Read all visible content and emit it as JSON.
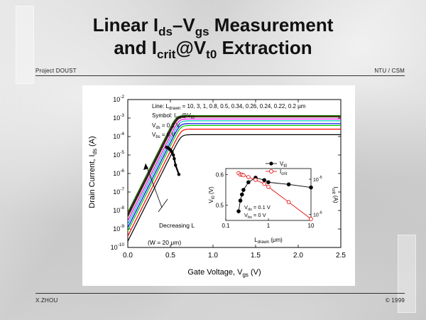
{
  "slide": {
    "title_line1": {
      "a": "Linear I",
      "b": "ds",
      "c": "–V",
      "d": "gs",
      "e": " Measurement"
    },
    "title_line2": {
      "a": "and I",
      "b": "crit",
      "c": "@V",
      "d": "t0",
      "e": " Extraction"
    },
    "header_left": "Project DOUST",
    "header_right": "NTU / CSM",
    "footer_left": "X.ZHOU",
    "footer_right": "© 1999"
  },
  "chart_data": [
    {
      "type": "line",
      "xlabel": {
        "a": "Gate Voltage, V",
        "b": "gs",
        "c": " (V)"
      },
      "ylabel": {
        "a": "Drain Current, I",
        "b": "ds",
        "c": " (A)"
      },
      "xlim": [
        0.0,
        2.5
      ],
      "ylim_log10": [
        -10,
        -2
      ],
      "xticks": [
        "0.0",
        "0.5",
        "1.0",
        "1.5",
        "2.0",
        "2.5"
      ],
      "yticks": [
        {
          "exp": -2,
          "label": "10",
          "sup": "-2"
        },
        {
          "exp": -3,
          "label": "10",
          "sup": "-3"
        },
        {
          "exp": -4,
          "label": "10",
          "sup": "-4"
        },
        {
          "exp": -5,
          "label": "10",
          "sup": "-5"
        },
        {
          "exp": -6,
          "label": "10",
          "sup": "-6"
        },
        {
          "exp": -7,
          "label": "10",
          "sup": "-7"
        },
        {
          "exp": -8,
          "label": "10",
          "sup": "-8"
        },
        {
          "exp": -9,
          "label": "10",
          "sup": "-9"
        },
        {
          "exp": -10,
          "label": "10",
          "sup": "-10"
        }
      ],
      "legend_lines": {
        "l1": {
          "a": "Line: L",
          "b": "drawn",
          "c": " = 10, 3, 1, 0.8, 0.5, 0.34, 0.26, 0.24, 0.22, 0.2 μm"
        },
        "l2": {
          "a": "Symbol: I",
          "b": "crit",
          "c": "@V",
          "d": "t0"
        },
        "l3": {
          "a": "V",
          "b": "ds",
          "c": " = 0.1 V"
        },
        "l4": {
          "a": "V",
          "b": "bs",
          "c": " = 0 V"
        }
      },
      "annotations": {
        "decreasing": "Decreasing L",
        "width": "(W = 20 μm)"
      },
      "series": [
        {
          "L": "10",
          "color": "#000000",
          "vt": 0.52,
          "sat_log": -3.9,
          "crit_x": 0.6,
          "crit_log": -6.05
        },
        {
          "L": "3",
          "color": "#ff0000",
          "vt": 0.49,
          "sat_log": -3.6,
          "crit_x": 0.56,
          "crit_log": -5.55
        },
        {
          "L": "1",
          "color": "#00cc00",
          "vt": 0.46,
          "sat_log": -3.4,
          "crit_x": 0.545,
          "crit_log": -5.2
        },
        {
          "L": "0.8",
          "color": "#0000ff",
          "vt": 0.44,
          "sat_log": -3.3,
          "crit_x": 0.535,
          "crit_log": -5.0
        },
        {
          "L": "0.5",
          "color": "#00c0c0",
          "vt": 0.42,
          "sat_log": -3.15,
          "crit_x": 0.52,
          "crit_log": -4.85
        },
        {
          "L": "0.34",
          "color": "#ff00ff",
          "vt": 0.4,
          "sat_log": -3.05,
          "crit_x": 0.505,
          "crit_log": -4.75
        },
        {
          "L": "0.26",
          "color": "#808000",
          "vt": 0.38,
          "sat_log": -2.95,
          "crit_x": 0.49,
          "crit_log": -4.68
        },
        {
          "L": "0.24",
          "color": "#000080",
          "vt": 0.37,
          "sat_log": -2.92,
          "crit_x": 0.475,
          "crit_log": -4.63
        },
        {
          "L": "0.22",
          "color": "#800000",
          "vt": 0.36,
          "sat_log": -2.9,
          "crit_x": 0.465,
          "crit_log": -4.6
        },
        {
          "L": "0.2",
          "color": "#008000",
          "vt": 0.35,
          "sat_log": -2.87,
          "crit_x": 0.455,
          "crit_log": -4.58
        }
      ]
    },
    {
      "type": "line",
      "title": "",
      "xlabel": {
        "a": "L",
        "b": "drawn",
        "c": " (μm)"
      },
      "ylabel_left": {
        "a": "V",
        "b": "t0",
        "c": " (V)"
      },
      "ylabel_right": {
        "a": "I",
        "b": "crit",
        "c": " (A)"
      },
      "x_log": true,
      "xlim": [
        0.1,
        10
      ],
      "xticks": [
        "0.1",
        "1",
        "10"
      ],
      "ylim_left": [
        0.45,
        0.62
      ],
      "yticks_left": [
        "0.6",
        "0.5"
      ],
      "yticks_right": [
        {
          "label": "10",
          "sup": "-5"
        },
        {
          "label": "10",
          "sup": "-6"
        }
      ],
      "legend": [
        {
          "a": "V",
          "b": "t0"
        },
        {
          "a": "I",
          "b": "crit"
        }
      ],
      "annotations": {
        "vds": {
          "a": "V",
          "b": "ds",
          "c": " = 0.1 V"
        },
        "vbs": {
          "a": "V",
          "b": "bs",
          "c": " = 0 V"
        }
      },
      "series": [
        {
          "name": "Vt0",
          "axis": "left",
          "color": "#000000",
          "marker": "filled-circle",
          "x": [
            0.2,
            0.22,
            0.24,
            0.26,
            0.34,
            0.5,
            0.8,
            1,
            3,
            10
          ],
          "y": [
            0.48,
            0.515,
            0.535,
            0.55,
            0.575,
            0.59,
            0.582,
            0.575,
            0.568,
            0.558
          ]
        },
        {
          "name": "Icrit",
          "axis": "right",
          "color": "#e00000",
          "marker": "open-circle",
          "x": [
            0.2,
            0.22,
            0.24,
            0.26,
            0.34,
            0.5,
            0.8,
            1,
            3,
            10
          ],
          "y": [
            0.605,
            0.6,
            0.6,
            0.598,
            0.592,
            0.583,
            0.57,
            0.56,
            0.51,
            0.455
          ]
        }
      ]
    }
  ]
}
